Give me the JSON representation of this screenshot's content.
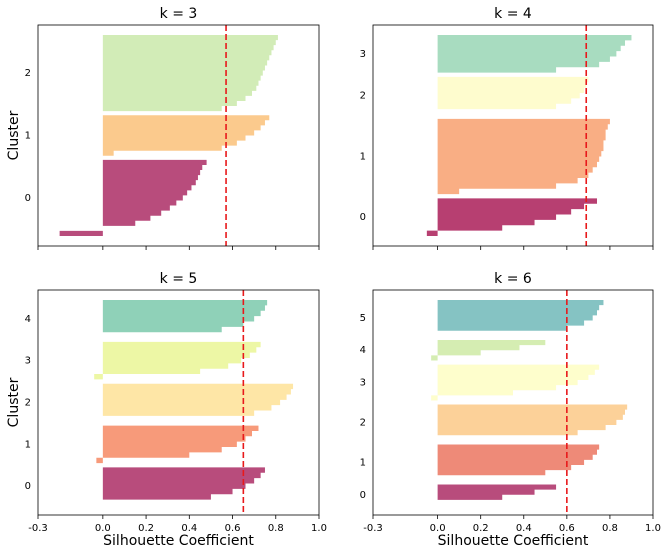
{
  "chart_data": [
    {
      "type": "silhouette",
      "title": "k = 3",
      "ylabel": "Cluster",
      "xlim": [
        -0.3,
        1.0
      ],
      "mean": 0.57,
      "mean_color": "#e8191b",
      "clusters": [
        {
          "name": "0",
          "color": "#b84c7c",
          "values": [
            -0.2,
            0.0,
            0.15,
            0.22,
            0.27,
            0.31,
            0.34,
            0.37,
            0.39,
            0.41,
            0.43,
            0.44,
            0.45,
            0.46,
            0.48
          ]
        },
        {
          "name": "1",
          "color": "#fbca8d",
          "values": [
            0.05,
            0.55,
            0.62,
            0.66,
            0.7,
            0.73,
            0.75,
            0.77
          ]
        },
        {
          "name": "2",
          "color": "#d2ecb7",
          "values": [
            0.55,
            0.62,
            0.66,
            0.69,
            0.71,
            0.72,
            0.73,
            0.74,
            0.75,
            0.76,
            0.77,
            0.78,
            0.79,
            0.8,
            0.81
          ]
        }
      ]
    },
    {
      "type": "silhouette",
      "title": "k = 4",
      "xlim": [
        -0.3,
        1.0
      ],
      "mean": 0.69,
      "mean_color": "#e8191b",
      "clusters": [
        {
          "name": "0",
          "color": "#b73f71",
          "values": [
            -0.05,
            0.3,
            0.45,
            0.55,
            0.62,
            0.68,
            0.74
          ]
        },
        {
          "name": "1",
          "color": "#f9ae84",
          "values": [
            0.1,
            0.55,
            0.65,
            0.7,
            0.72,
            0.74,
            0.75,
            0.76,
            0.77,
            0.77,
            0.78,
            0.78,
            0.79,
            0.8
          ]
        },
        {
          "name": "2",
          "color": "#fefcce",
          "values": [
            0.0,
            0.55,
            0.62,
            0.66,
            0.68,
            0.69,
            0.7
          ]
        },
        {
          "name": "3",
          "color": "#a8dcc0",
          "values": [
            0.55,
            0.75,
            0.8,
            0.83,
            0.85,
            0.87,
            0.9
          ]
        }
      ]
    },
    {
      "type": "silhouette",
      "title": "k = 5",
      "ylabel": "Cluster",
      "xlabel": "Silhouette Coefficient",
      "xlim": [
        -0.3,
        1.0
      ],
      "mean": 0.65,
      "mean_color": "#e8191b",
      "xticks": [
        -0.3,
        {
          "value": 0,
          "label": "0.0"
        },
        0.2,
        0.4,
        0.6,
        0.8,
        {
          "value": 1,
          "label": "1.0"
        }
      ],
      "clusters": [
        {
          "name": "0",
          "color": "#b84c7c",
          "values": [
            0.0,
            0.5,
            0.6,
            0.66,
            0.7,
            0.73,
            0.75
          ]
        },
        {
          "name": "1",
          "color": "#f79a7a",
          "values": [
            -0.03,
            0.4,
            0.55,
            0.62,
            0.66,
            0.69,
            0.72
          ]
        },
        {
          "name": "2",
          "color": "#fee6a6",
          "values": [
            0.0,
            0.7,
            0.78,
            0.82,
            0.85,
            0.87,
            0.88
          ]
        },
        {
          "name": "3",
          "color": "#edf7a5",
          "values": [
            -0.04,
            0.45,
            0.58,
            0.64,
            0.68,
            0.71,
            0.73
          ]
        },
        {
          "name": "4",
          "color": "#8fd1b8",
          "values": [
            0.0,
            0.55,
            0.65,
            0.7,
            0.73,
            0.75,
            0.76
          ]
        }
      ]
    },
    {
      "type": "silhouette",
      "title": "k = 6",
      "xlabel": "Silhouette Coefficient",
      "xlim": [
        -0.3,
        1.0
      ],
      "mean": 0.6,
      "mean_color": "#e8191b",
      "xticks": [
        -0.3,
        {
          "value": 0,
          "label": "0.0"
        },
        0.2,
        0.4,
        0.6,
        0.8,
        {
          "value": 1,
          "label": "1.0"
        }
      ],
      "clusters": [
        {
          "name": "0",
          "color": "#b84c7c",
          "values": [
            0.0,
            0.3,
            0.45,
            0.55
          ]
        },
        {
          "name": "1",
          "color": "#ee8a78",
          "values": [
            0.0,
            0.5,
            0.62,
            0.68,
            0.72,
            0.74,
            0.75
          ]
        },
        {
          "name": "2",
          "color": "#fcd199",
          "values": [
            0.0,
            0.65,
            0.78,
            0.83,
            0.86,
            0.87,
            0.88
          ]
        },
        {
          "name": "3",
          "color": "#fefecc",
          "values": [
            -0.03,
            0.35,
            0.55,
            0.65,
            0.7,
            0.73,
            0.75
          ]
        },
        {
          "name": "4",
          "color": "#d5edb2",
          "values": [
            -0.03,
            0.2,
            0.38,
            0.5
          ]
        },
        {
          "name": "5",
          "color": "#85c3c3",
          "values": [
            0.0,
            0.6,
            0.68,
            0.72,
            0.74,
            0.75,
            0.77
          ]
        }
      ]
    }
  ]
}
